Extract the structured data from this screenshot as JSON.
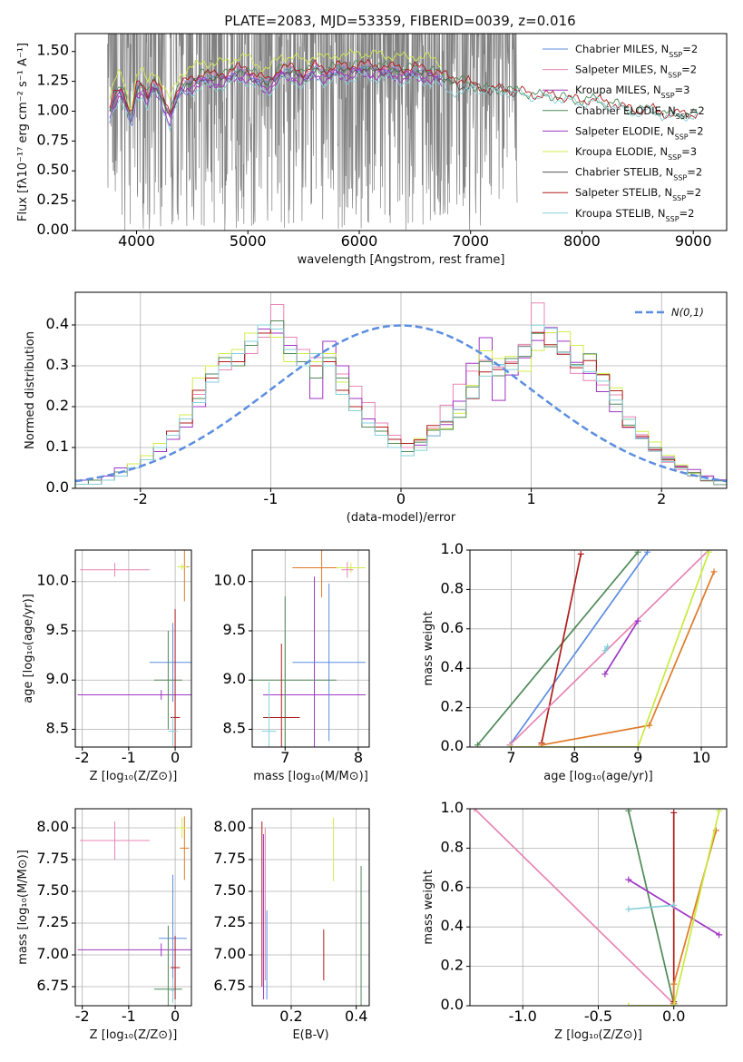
{
  "title": "PLATE=2083, MJD=53359, FIBERID=0039, z=0.016",
  "colors": {
    "chabrier_miles": "#5b8ee0",
    "salpeter_miles": "#e884b5",
    "kroupa_miles": "#9b30b8",
    "chabrier_elodie": "#4f8a58",
    "salpeter_elodie": "#9f36c4",
    "kroupa_elodie": "#d2ec4b",
    "chabrier_stelib": "#555555",
    "salpeter_stelib": "#b01c1c",
    "kroupa_stelib": "#86cfd8",
    "data": "#808080",
    "extra_orange": "#e07a28",
    "extra_olive": "#c9ea3e"
  },
  "chart_data": [
    {
      "id": "spectrum",
      "type": "line",
      "title": "PLATE=2083, MJD=53359, FIBERID=0039, z=0.016",
      "xlabel": "wavelength [Angstrom, rest frame]",
      "ylabel": "Flux [fλ10⁻¹⁷ erg cm⁻² s⁻¹ A⁻¹]",
      "xlim": [
        3450,
        9300
      ],
      "ylim": [
        0,
        1.65
      ],
      "xticks": [
        4000,
        5000,
        6000,
        7000,
        8000,
        9000
      ],
      "yticks": [
        0.0,
        0.25,
        0.5,
        0.75,
        1.0,
        1.25,
        1.5
      ],
      "legend_position": "top-right",
      "legend": [
        {
          "label": "Chabrier MILES, N",
          "sub": "SSP",
          "tail": "=2",
          "color": "#5b8ee0"
        },
        {
          "label": "Salpeter MILES, N",
          "sub": "SSP",
          "tail": "=2",
          "color": "#e884b5"
        },
        {
          "label": "Kroupa MILES, N",
          "sub": "SSP",
          "tail": "=3",
          "color": "#9b30b8"
        },
        {
          "label": "Chabrier ELODIE, N",
          "sub": "SSP",
          "tail": "=2",
          "color": "#4f8a58"
        },
        {
          "label": "Salpeter ELODIE, N",
          "sub": "SSP",
          "tail": "=2",
          "color": "#9f36c4"
        },
        {
          "label": "Kroupa ELODIE, N",
          "sub": "SSP",
          "tail": "=3",
          "color": "#d2ec4b"
        },
        {
          "label": "Chabrier STELIB, N",
          "sub": "SSP",
          "tail": "=2",
          "color": "#555555"
        },
        {
          "label": "Salpeter STELIB, N",
          "sub": "SSP",
          "tail": "=2",
          "color": "#b01c1c"
        },
        {
          "label": "Kroupa STELIB, N",
          "sub": "SSP",
          "tail": "=2",
          "color": "#86cfd8"
        }
      ],
      "data_range": [
        3740,
        7420
      ],
      "model_shape": {
        "x": [
          3750,
          3800,
          3850,
          3900,
          3950,
          4000,
          4050,
          4100,
          4150,
          4200,
          4250,
          4300,
          4350,
          4400,
          4500,
          4600,
          4700,
          4800,
          4900,
          5000,
          5100,
          5175,
          5300,
          5400,
          5500,
          5600,
          5700,
          5800,
          5900,
          6000,
          6100,
          6200,
          6300,
          6400,
          6500,
          6563,
          6600,
          6700,
          6800,
          6900,
          7000,
          7100,
          7200,
          7300,
          7400,
          7500,
          7600,
          7700,
          7800,
          7900,
          8000,
          8100,
          8200,
          8300,
          8400,
          8500,
          8600,
          8700,
          8800,
          8900,
          9000
        ],
        "y": [
          0.95,
          1.12,
          1.2,
          1.1,
          0.9,
          1.18,
          1.22,
          1.12,
          1.24,
          1.17,
          1.05,
          0.97,
          1.12,
          1.2,
          1.24,
          1.3,
          1.27,
          1.3,
          1.33,
          1.33,
          1.27,
          1.22,
          1.35,
          1.33,
          1.3,
          1.35,
          1.32,
          1.36,
          1.34,
          1.38,
          1.35,
          1.36,
          1.34,
          1.33,
          1.35,
          1.32,
          1.33,
          1.31,
          1.25,
          1.24,
          1.22,
          1.19,
          1.18,
          1.18,
          1.17,
          1.15,
          1.13,
          1.13,
          1.12,
          1.1,
          1.08,
          1.1,
          1.07,
          1.06,
          1.02,
          1.0,
          1.02,
          0.99,
          0.96,
          0.98,
          0.97
        ]
      }
    },
    {
      "id": "residuals",
      "type": "line",
      "xlabel": "(data-model)/error",
      "ylabel": "Normed distribution",
      "xlim": [
        -2.5,
        2.5
      ],
      "ylim": [
        0,
        0.48
      ],
      "xticks": [
        -2,
        -1,
        0,
        1,
        2
      ],
      "yticks": [
        0.0,
        0.1,
        0.2,
        0.3,
        0.4
      ],
      "legend_position": "top-right",
      "reference_label": "N(0,1)",
      "reference_color": "#5b8ee0",
      "bin_width": 0.1,
      "series": [
        {
          "color": "#e884b5",
          "values": [
            0.01,
            0.02,
            0.03,
            0.04,
            0.05,
            0.07,
            0.1,
            0.13,
            0.17,
            0.23,
            0.27,
            0.29,
            0.3,
            0.33,
            0.37,
            0.45,
            0.37,
            0.34,
            0.32,
            0.32,
            0.28,
            0.25,
            0.21,
            0.16,
            0.13,
            0.1
          ]
        },
        {
          "color": "#9f36c4",
          "values": [
            0.02,
            0.02,
            0.03,
            0.05,
            0.06,
            0.08,
            0.09,
            0.12,
            0.15,
            0.2,
            0.26,
            0.3,
            0.31,
            0.35,
            0.39,
            0.38,
            0.35,
            0.3,
            0.22,
            0.36,
            0.3,
            0.22,
            0.17,
            0.14,
            0.11,
            0.09
          ]
        },
        {
          "color": "#d2ec4b",
          "values": [
            0.01,
            0.01,
            0.02,
            0.04,
            0.06,
            0.08,
            0.11,
            0.14,
            0.18,
            0.27,
            0.3,
            0.33,
            0.34,
            0.38,
            0.4,
            0.37,
            0.31,
            0.33,
            0.31,
            0.33,
            0.26,
            0.2,
            0.16,
            0.15,
            0.12,
            0.08
          ]
        },
        {
          "color": "#4f8a58",
          "values": [
            0.01,
            0.02,
            0.02,
            0.04,
            0.05,
            0.07,
            0.1,
            0.13,
            0.17,
            0.22,
            0.28,
            0.32,
            0.3,
            0.35,
            0.38,
            0.41,
            0.33,
            0.31,
            0.27,
            0.32,
            0.27,
            0.19,
            0.15,
            0.14,
            0.11,
            0.09
          ]
        },
        {
          "color": "#b01c1c",
          "values": [
            0.01,
            0.01,
            0.02,
            0.03,
            0.05,
            0.07,
            0.1,
            0.14,
            0.16,
            0.24,
            0.27,
            0.31,
            0.31,
            0.36,
            0.38,
            0.39,
            0.34,
            0.3,
            0.3,
            0.31,
            0.24,
            0.2,
            0.16,
            0.15,
            0.12,
            0.11
          ]
        },
        {
          "color": "#86cfd8",
          "values": [
            0.01,
            0.01,
            0.02,
            0.03,
            0.05,
            0.07,
            0.1,
            0.13,
            0.17,
            0.21,
            0.26,
            0.3,
            0.33,
            0.36,
            0.4,
            0.39,
            0.34,
            0.3,
            0.33,
            0.3,
            0.23,
            0.19,
            0.16,
            0.13,
            0.1,
            0.08
          ]
        }
      ]
    },
    {
      "id": "age_vs_Z",
      "type": "scatter",
      "xlabel": "Z [log₁₀(Z/Z⊙)]",
      "ylabel": "age  [log₁₀(age/yr)]",
      "xlim": [
        -2.15,
        0.35
      ],
      "ylim": [
        8.32,
        10.32
      ],
      "xticks": [
        -2,
        -1,
        0
      ],
      "yticks": [
        8.5,
        9.0,
        9.5,
        10.0
      ],
      "points": [
        {
          "x": -1.3,
          "y": 10.12,
          "xerr": 0.75,
          "yerr": 0.07,
          "color": "#e884b5"
        },
        {
          "x": -0.3,
          "y": 8.85,
          "xerr": 1.8,
          "yerr": 0.05,
          "color": "#9f36c4"
        },
        {
          "x": -0.05,
          "y": 9.18,
          "xerr": 0.5,
          "yerr": 0.4,
          "color": "#5b8ee0"
        },
        {
          "x": -0.15,
          "y": 9.0,
          "xerr": 0.3,
          "yerr": 0.5,
          "color": "#4f8a58"
        },
        {
          "x": 0.2,
          "y": 10.15,
          "xerr": 0.1,
          "yerr": 0.35,
          "color": "#e07a28"
        },
        {
          "x": 0.15,
          "y": 10.15,
          "xerr": 0.1,
          "yerr": 0.03,
          "color": "#d2ec4b"
        },
        {
          "x": 0.0,
          "y": 8.62,
          "xerr": 0.1,
          "yerr": 1.1,
          "color": "#b01c1c"
        },
        {
          "x": -0.05,
          "y": 8.48,
          "xerr": 0.1,
          "yerr": 0.15,
          "color": "#86cfd8"
        }
      ]
    },
    {
      "id": "age_vs_mass",
      "type": "scatter",
      "xlabel": "mass [log₁₀(M/M⊙)]",
      "ylabel": "",
      "xlim": [
        6.55,
        8.15
      ],
      "ylim": [
        8.32,
        10.32
      ],
      "xticks": [
        7,
        8
      ],
      "yticks": [
        8.5,
        9.0,
        9.5,
        10.0
      ],
      "points": [
        {
          "x": 7.5,
          "y": 10.14,
          "xerr": 0.4,
          "yerr": 0.3,
          "color": "#e07a28"
        },
        {
          "x": 7.9,
          "y": 10.14,
          "xerr": 0.2,
          "yerr": 0.05,
          "color": "#d2ec4b"
        },
        {
          "x": 7.85,
          "y": 10.12,
          "xerr": 0.08,
          "yerr": 0.08,
          "color": "#e884b5"
        },
        {
          "x": 7.4,
          "y": 8.85,
          "xerr": 0.7,
          "yerr": 1.2,
          "color": "#9f36c4"
        },
        {
          "x": 7.6,
          "y": 9.18,
          "xerr": 0.5,
          "yerr": 0.8,
          "color": "#5b8ee0"
        },
        {
          "x": 7.0,
          "y": 9.0,
          "xerr": 0.7,
          "yerr": 0.85,
          "color": "#4f8a58"
        },
        {
          "x": 6.95,
          "y": 8.62,
          "xerr": 0.25,
          "yerr": 0.75,
          "color": "#b01c1c"
        },
        {
          "x": 6.78,
          "y": 8.48,
          "xerr": 0.1,
          "yerr": 0.5,
          "color": "#86cfd8"
        }
      ]
    },
    {
      "id": "weight_vs_age",
      "type": "line",
      "xlabel": "age  [log₁₀(age/yr)]",
      "ylabel": "mass weight",
      "xlim": [
        6.35,
        10.4
      ],
      "ylim": [
        0,
        1
      ],
      "xticks": [
        7,
        8,
        9,
        10
      ],
      "yticks": [
        0.0,
        0.2,
        0.4,
        0.6,
        0.8,
        1.0
      ],
      "series": [
        {
          "color": "#4f8a58",
          "x": [
            6.47,
            9.0
          ],
          "y": [
            0.01,
            0.99
          ]
        },
        {
          "color": "#5b8ee0",
          "x": [
            6.98,
            9.15
          ],
          "y": [
            0.01,
            0.99
          ]
        },
        {
          "color": "#b01c1c",
          "x": [
            7.48,
            8.1
          ],
          "y": [
            0.02,
            0.98
          ]
        },
        {
          "color": "#e884b5",
          "x": [
            6.98,
            10.12
          ],
          "y": [
            0.01,
            1.0
          ]
        },
        {
          "color": "#9f36c4",
          "x": [
            8.48,
            9.0
          ],
          "y": [
            0.37,
            0.64
          ]
        },
        {
          "color": "#86cfd8",
          "x": [
            8.48,
            8.52
          ],
          "y": [
            0.49,
            0.51
          ]
        },
        {
          "color": "#e07a28",
          "x": [
            7.48,
            9.18,
            10.2
          ],
          "y": [
            0.01,
            0.11,
            0.89
          ]
        },
        {
          "color": "#c9ea3e",
          "x": [
            6.98,
            9.0,
            10.12
          ],
          "y": [
            0.0,
            0.0,
            0.99
          ]
        }
      ]
    },
    {
      "id": "mass_vs_Z",
      "type": "scatter",
      "xlabel": "Z [log₁₀(Z/Z⊙)]",
      "ylabel": "mass [log₁₀(M/M⊙)]",
      "xlim": [
        -2.15,
        0.35
      ],
      "ylim": [
        6.6,
        8.15
      ],
      "xticks": [
        -2,
        -1,
        0
      ],
      "yticks": [
        6.75,
        7.0,
        7.25,
        7.5,
        7.75,
        8.0,
        8.25
      ],
      "points": [
        {
          "x": -1.3,
          "y": 7.9,
          "xerr": 0.75,
          "yerr": 0.15,
          "color": "#e884b5"
        },
        {
          "x": -0.3,
          "y": 7.04,
          "xerr": 1.8,
          "yerr": 0.05,
          "color": "#9f36c4"
        },
        {
          "x": -0.05,
          "y": 7.13,
          "xerr": 0.3,
          "yerr": 0.5,
          "color": "#5b8ee0"
        },
        {
          "x": -0.15,
          "y": 6.73,
          "xerr": 0.3,
          "yerr": 0.5,
          "color": "#4f8a58"
        },
        {
          "x": 0.2,
          "y": 7.84,
          "xerr": 0.1,
          "yerr": 0.25,
          "color": "#e07a28"
        },
        {
          "x": 0.15,
          "y": 8.0,
          "xerr": 0.1,
          "yerr": 0.08,
          "color": "#d2ec4b"
        },
        {
          "x": 0.0,
          "y": 6.9,
          "xerr": 0.1,
          "yerr": 0.25,
          "color": "#b01c1c"
        },
        {
          "x": -0.05,
          "y": 6.72,
          "xerr": 0.05,
          "yerr": 0.1,
          "color": "#86cfd8"
        }
      ]
    },
    {
      "id": "mass_vs_ebv",
      "type": "scatter",
      "xlabel": "E(B-V)",
      "ylabel": "",
      "xlim": [
        0.08,
        0.44
      ],
      "ylim": [
        6.6,
        8.15
      ],
      "xticks": [
        0.2,
        0.4
      ],
      "yticks": [
        6.75,
        7.0,
        7.25,
        7.5,
        7.75,
        8.0
      ],
      "points": [
        {
          "x": 0.11,
          "y": 7.4,
          "xerr": 0.0,
          "yerr": 0.65,
          "color": "#b01c1c"
        },
        {
          "x": 0.115,
          "y": 7.3,
          "xerr": 0.0,
          "yerr": 0.65,
          "color": "#9f36c4"
        },
        {
          "x": 0.12,
          "y": 7.4,
          "xerr": 0.0,
          "yerr": 0.6,
          "color": "#e884b5"
        },
        {
          "x": 0.125,
          "y": 7.0,
          "xerr": 0.0,
          "yerr": 0.35,
          "color": "#5b8ee0"
        },
        {
          "x": 0.3,
          "y": 7.0,
          "xerr": 0.0,
          "yerr": 0.2,
          "color": "#b01c1c"
        },
        {
          "x": 0.33,
          "y": 7.83,
          "xerr": 0.0,
          "yerr": 0.25,
          "color": "#d2ec4b"
        },
        {
          "x": 0.415,
          "y": 7.15,
          "xerr": 0.0,
          "yerr": 0.55,
          "color": "#4f8a58"
        }
      ]
    },
    {
      "id": "weight_vs_Z",
      "type": "line",
      "xlabel": "Z [log₁₀(Z/Z⊙)]",
      "ylabel": "mass weight",
      "xlim": [
        -1.35,
        0.35
      ],
      "ylim": [
        0,
        1
      ],
      "xticks": [
        -1.0,
        -0.5,
        0.0
      ],
      "yticks": [
        0.0,
        0.2,
        0.4,
        0.6,
        0.8,
        1.0
      ],
      "series": [
        {
          "color": "#e884b5",
          "x": [
            -1.32,
            0.0
          ],
          "y": [
            1.0,
            0.01
          ]
        },
        {
          "color": "#4f8a58",
          "x": [
            -0.3,
            0.0
          ],
          "y": [
            0.99,
            0.01
          ]
        },
        {
          "color": "#b01c1c",
          "x": [
            0.0,
            0.0
          ],
          "y": [
            0.02,
            0.98
          ]
        },
        {
          "color": "#9f36c4",
          "x": [
            -0.3,
            0.3
          ],
          "y": [
            0.64,
            0.36
          ]
        },
        {
          "color": "#86cfd8",
          "x": [
            -0.3,
            0.0
          ],
          "y": [
            0.49,
            0.51
          ]
        },
        {
          "color": "#e07a28",
          "x": [
            0.0,
            0.0,
            0.28
          ],
          "y": [
            0.01,
            0.11,
            0.89
          ]
        },
        {
          "color": "#c9ea3e",
          "x": [
            -0.3,
            0.0,
            0.3
          ],
          "y": [
            0.0,
            0.0,
            0.99
          ]
        }
      ]
    }
  ]
}
